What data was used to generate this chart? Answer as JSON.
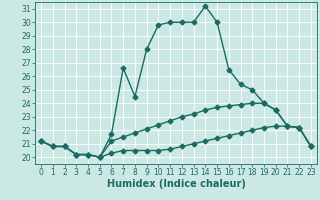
{
  "xlabel": "Humidex (Indice chaleur)",
  "background_color": "#cce8e5",
  "grid_color": "#b0d4d0",
  "line_color": "#1a6b62",
  "xlim": [
    -0.5,
    23.5
  ],
  "ylim": [
    19.5,
    31.5
  ],
  "yticks": [
    20,
    21,
    22,
    23,
    24,
    25,
    26,
    27,
    28,
    29,
    30,
    31
  ],
  "xticks": [
    0,
    1,
    2,
    3,
    4,
    5,
    6,
    7,
    8,
    9,
    10,
    11,
    12,
    13,
    14,
    15,
    16,
    17,
    18,
    19,
    20,
    21,
    22,
    23
  ],
  "line1_x": [
    0,
    1,
    2,
    3,
    4,
    5,
    6,
    7,
    8,
    9,
    10,
    11,
    12,
    13,
    14,
    15,
    16,
    17,
    18,
    19,
    20,
    21,
    22,
    23
  ],
  "line1_y": [
    21.2,
    20.8,
    20.8,
    20.2,
    20.2,
    20.0,
    21.7,
    26.6,
    24.5,
    28.0,
    29.8,
    30.0,
    30.0,
    30.0,
    31.2,
    30.0,
    26.5,
    25.4,
    25.0,
    24.0,
    23.5,
    22.3,
    22.2,
    20.8
  ],
  "line2_x": [
    0,
    1,
    2,
    3,
    4,
    5,
    6,
    7,
    8,
    9,
    10,
    11,
    12,
    13,
    14,
    15,
    16,
    17,
    18,
    19,
    20,
    21,
    22,
    23
  ],
  "line2_y": [
    21.2,
    20.8,
    20.8,
    20.2,
    20.2,
    20.0,
    21.2,
    21.5,
    21.8,
    22.1,
    22.4,
    22.7,
    23.0,
    23.2,
    23.5,
    23.7,
    23.8,
    23.9,
    24.0,
    24.0,
    23.5,
    22.3,
    22.2,
    20.8
  ],
  "line3_x": [
    0,
    1,
    2,
    3,
    4,
    5,
    6,
    7,
    8,
    9,
    10,
    11,
    12,
    13,
    14,
    15,
    16,
    17,
    18,
    19,
    20,
    21,
    22,
    23
  ],
  "line3_y": [
    21.2,
    20.8,
    20.8,
    20.2,
    20.2,
    20.0,
    20.3,
    20.5,
    20.5,
    20.5,
    20.5,
    20.6,
    20.8,
    21.0,
    21.2,
    21.4,
    21.6,
    21.8,
    22.0,
    22.2,
    22.3,
    22.3,
    22.2,
    20.8
  ],
  "marker": "D",
  "marker_size": 2.5,
  "linewidth": 1.0,
  "tick_fontsize": 5.5,
  "label_fontsize": 7
}
